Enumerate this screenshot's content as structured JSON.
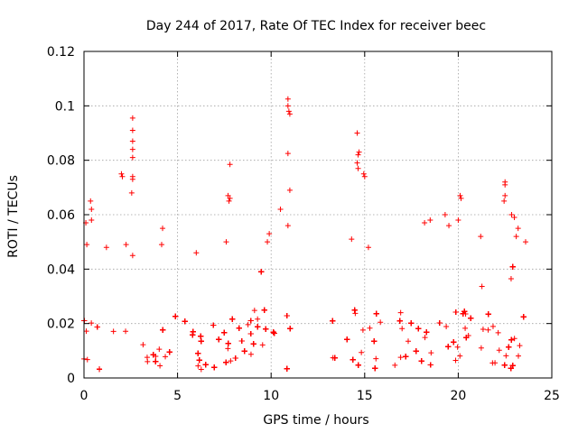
{
  "chart_data": {
    "type": "scatter",
    "title": "Day 244 of 2017, Rate Of TEC Index for receiver beec",
    "xlabel": "GPS time / hours",
    "ylabel": "ROTI / TECUs",
    "xlim": [
      0,
      25
    ],
    "ylim": [
      0,
      0.12
    ],
    "xticks": [
      0,
      5,
      10,
      15,
      20,
      25
    ],
    "xtick_labels": [
      "0",
      "5",
      "10",
      "15",
      "20",
      "25"
    ],
    "yticks": [
      0,
      0.02,
      0.04,
      0.06,
      0.08,
      0.1,
      0.12
    ],
    "ytick_labels": [
      "0",
      "0.02",
      "0.04",
      "0.06",
      "0.08",
      "0.1",
      "0.12"
    ],
    "grid": true,
    "color": "#ff0000",
    "marker": "plus",
    "data_gap_hours": [
      11.3,
      13.2
    ],
    "dense_band": {
      "y_min": 0.003,
      "y_max": 0.025
    },
    "notable_points": [
      {
        "x": 0.1,
        "y": 0.057
      },
      {
        "x": 0.15,
        "y": 0.049
      },
      {
        "x": 0.35,
        "y": 0.065
      },
      {
        "x": 0.4,
        "y": 0.062
      },
      {
        "x": 0.4,
        "y": 0.058
      },
      {
        "x": 1.2,
        "y": 0.048
      },
      {
        "x": 2.0,
        "y": 0.075
      },
      {
        "x": 2.05,
        "y": 0.074
      },
      {
        "x": 2.25,
        "y": 0.049
      },
      {
        "x": 2.6,
        "y": 0.0955
      },
      {
        "x": 2.6,
        "y": 0.091
      },
      {
        "x": 2.6,
        "y": 0.087
      },
      {
        "x": 2.6,
        "y": 0.084
      },
      {
        "x": 2.6,
        "y": 0.081
      },
      {
        "x": 2.6,
        "y": 0.074
      },
      {
        "x": 2.6,
        "y": 0.073
      },
      {
        "x": 2.55,
        "y": 0.068
      },
      {
        "x": 2.6,
        "y": 0.045
      },
      {
        "x": 4.2,
        "y": 0.055
      },
      {
        "x": 4.15,
        "y": 0.049
      },
      {
        "x": 6.0,
        "y": 0.046
      },
      {
        "x": 7.7,
        "y": 0.067
      },
      {
        "x": 7.8,
        "y": 0.066
      },
      {
        "x": 7.75,
        "y": 0.065
      },
      {
        "x": 7.8,
        "y": 0.0785
      },
      {
        "x": 7.6,
        "y": 0.05
      },
      {
        "x": 9.9,
        "y": 0.053
      },
      {
        "x": 9.8,
        "y": 0.05
      },
      {
        "x": 10.5,
        "y": 0.062
      },
      {
        "x": 10.9,
        "y": 0.1025
      },
      {
        "x": 10.9,
        "y": 0.1
      },
      {
        "x": 10.95,
        "y": 0.098
      },
      {
        "x": 11.0,
        "y": 0.097
      },
      {
        "x": 10.9,
        "y": 0.0825
      },
      {
        "x": 11.0,
        "y": 0.069
      },
      {
        "x": 10.9,
        "y": 0.056
      },
      {
        "x": 14.6,
        "y": 0.09
      },
      {
        "x": 14.7,
        "y": 0.083
      },
      {
        "x": 14.65,
        "y": 0.082
      },
      {
        "x": 14.6,
        "y": 0.079
      },
      {
        "x": 14.65,
        "y": 0.077
      },
      {
        "x": 14.95,
        "y": 0.075
      },
      {
        "x": 15.0,
        "y": 0.074
      },
      {
        "x": 14.3,
        "y": 0.051
      },
      {
        "x": 15.2,
        "y": 0.048
      },
      {
        "x": 18.2,
        "y": 0.057
      },
      {
        "x": 18.5,
        "y": 0.058
      },
      {
        "x": 19.3,
        "y": 0.06
      },
      {
        "x": 19.5,
        "y": 0.056
      },
      {
        "x": 20.1,
        "y": 0.067
      },
      {
        "x": 20.15,
        "y": 0.066
      },
      {
        "x": 20.0,
        "y": 0.058
      },
      {
        "x": 21.2,
        "y": 0.052
      },
      {
        "x": 22.5,
        "y": 0.072
      },
      {
        "x": 22.5,
        "y": 0.071
      },
      {
        "x": 22.5,
        "y": 0.067
      },
      {
        "x": 22.45,
        "y": 0.065
      },
      {
        "x": 22.85,
        "y": 0.06
      },
      {
        "x": 23.0,
        "y": 0.059
      },
      {
        "x": 23.2,
        "y": 0.055
      },
      {
        "x": 23.6,
        "y": 0.05
      },
      {
        "x": 23.1,
        "y": 0.052
      }
    ]
  }
}
